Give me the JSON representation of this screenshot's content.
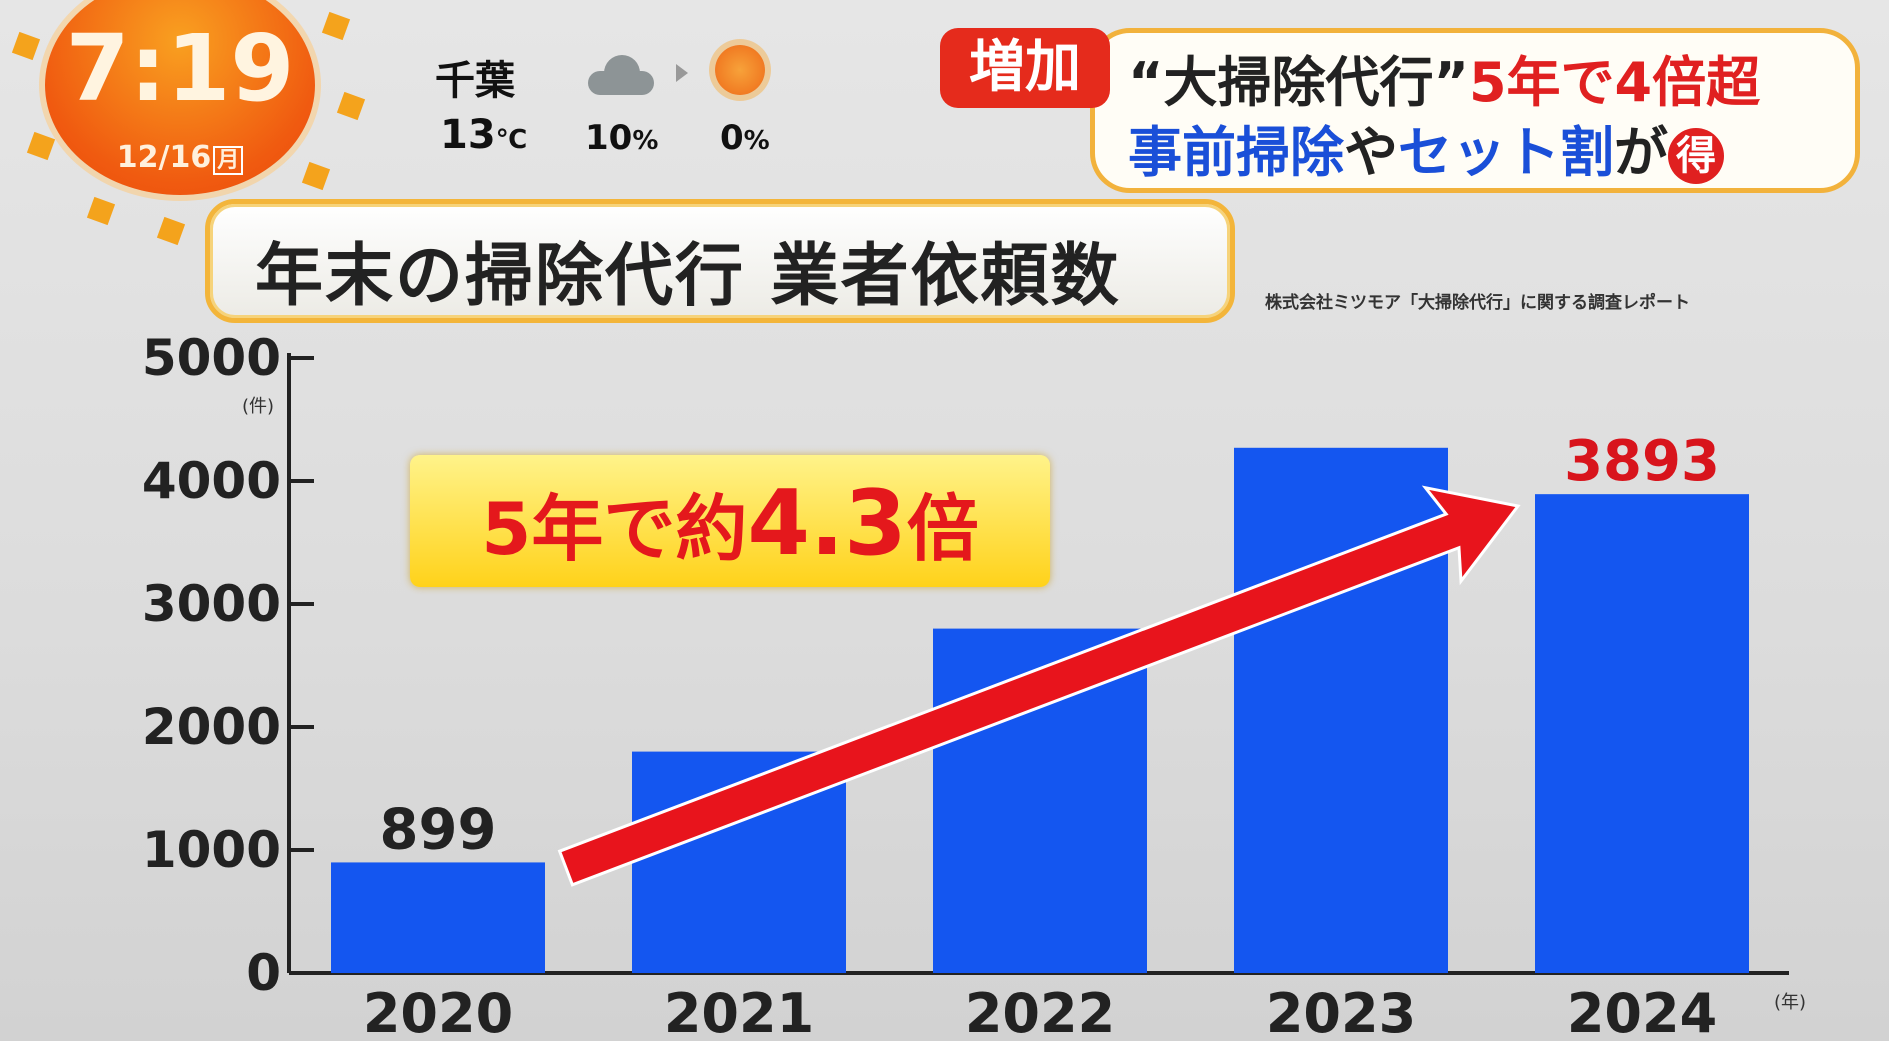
{
  "overlay": {
    "clock_time": "7:19",
    "clock_date": "12/16",
    "clock_weekday": "月",
    "weather": {
      "location": "千葉",
      "temperature": "13",
      "temperature_unit": "℃",
      "icon_now": "cloud-icon",
      "icon_next": "sun-icon",
      "precip_now": "10",
      "precip_next": "0",
      "precip_unit": "%"
    }
  },
  "headline": {
    "tag": "増加",
    "line1_quote": "“大掃除代行”",
    "line1_red": "5年で4倍超",
    "line2_blue1": "事前掃除",
    "line2_dark1": "や",
    "line2_blue2": "セット割",
    "line2_dark2": "が",
    "badge": "得"
  },
  "chart_data": {
    "type": "bar",
    "title": "年末の掃除代行 業者依頼数",
    "source": "株式会社ミツモア「大掃除代行」に関する調査レポート",
    "categories": [
      "2020",
      "2021",
      "2022",
      "2023",
      "2024"
    ],
    "values": [
      899,
      1800,
      2800,
      4270,
      3893
    ],
    "data_labels": {
      "2020": "899",
      "2024": "3893"
    },
    "ylim": [
      0,
      5000
    ],
    "yticks": [
      "0",
      "1000",
      "2000",
      "3000",
      "4000",
      "5000"
    ],
    "ylabel": "(件)",
    "xlabel": "(年)",
    "bar_color": "#1456f0",
    "grid": false,
    "annotation": {
      "prefix": "5年で約",
      "value": "4.3",
      "suffix": "倍"
    },
    "arrow_color": "#e8141c"
  }
}
